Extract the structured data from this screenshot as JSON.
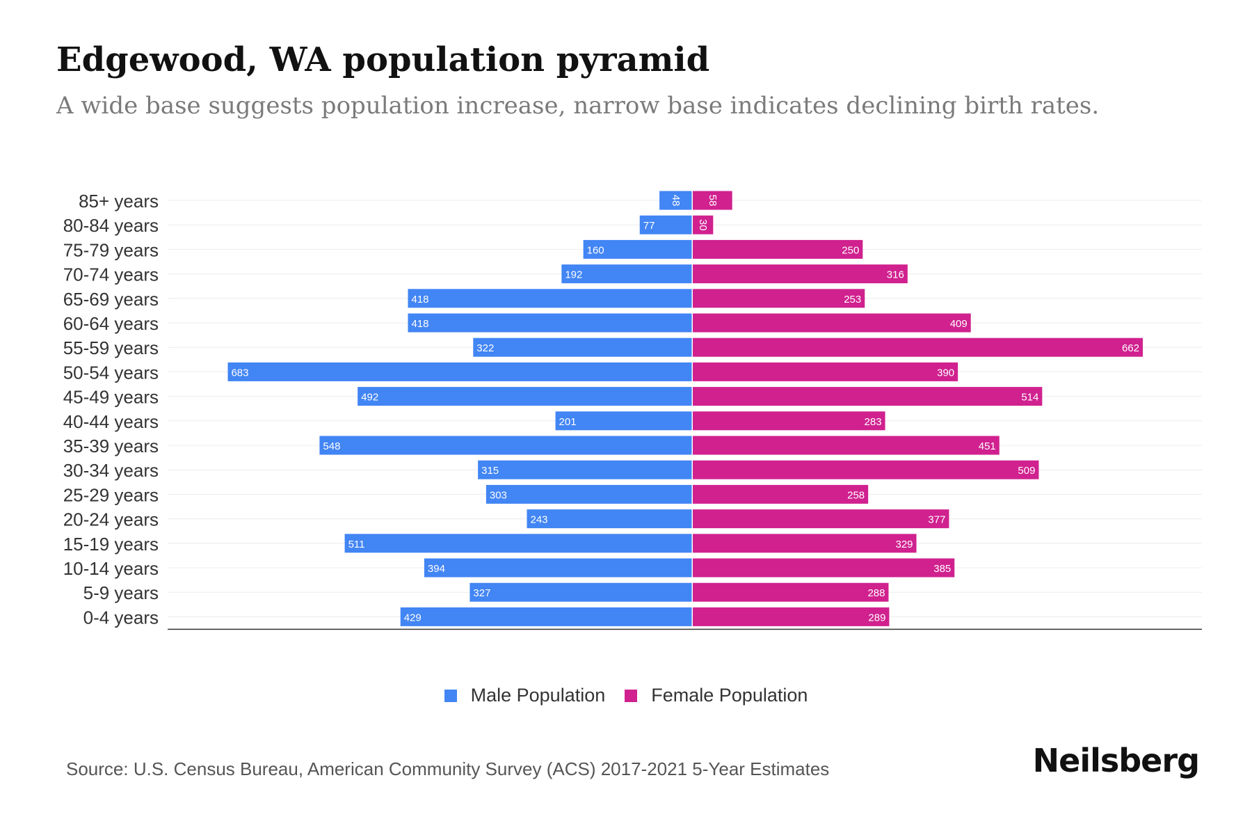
{
  "title": "Edgewood, WA population pyramid",
  "subtitle": "A wide base suggests population increase, narrow base indicates declining birth rates.",
  "chart_data": {
    "type": "bar",
    "orientation": "horizontal-pyramid",
    "categories": [
      "85+ years",
      "80-84 years",
      "75-79 years",
      "70-74 years",
      "65-69 years",
      "60-64 years",
      "55-59 years",
      "50-54 years",
      "45-49 years",
      "40-44 years",
      "35-39 years",
      "30-34 years",
      "25-29 years",
      "20-24 years",
      "15-19 years",
      "10-14 years",
      "5-9 years",
      "0-4 years"
    ],
    "series": [
      {
        "name": "Male Population",
        "color": "#4285f4",
        "values": [
          48,
          77,
          160,
          192,
          418,
          418,
          322,
          683,
          492,
          201,
          548,
          315,
          303,
          243,
          511,
          394,
          327,
          429
        ]
      },
      {
        "name": "Female Population",
        "color": "#d0218f",
        "values": [
          58,
          30,
          250,
          316,
          253,
          409,
          662,
          390,
          514,
          283,
          451,
          509,
          258,
          377,
          329,
          385,
          288,
          289
        ]
      }
    ],
    "xlim": [
      -750,
      750
    ],
    "grid": true,
    "legend_position": "bottom-center"
  },
  "legend": {
    "male_label": "Male Population",
    "female_label": "Female Population",
    "male_color": "#4285f4",
    "female_color": "#d0218f"
  },
  "source": "Source: U.S. Census Bureau, American Community Survey (ACS) 2017-2021 5-Year Estimates",
  "brand": "Neilsberg"
}
